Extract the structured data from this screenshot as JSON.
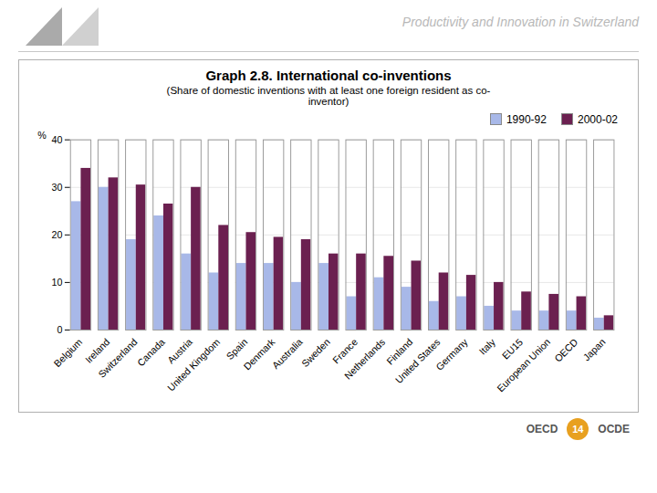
{
  "chart_data": {
    "type": "bar",
    "title": "Graph 2.8. International co-inventions",
    "subtitle": "(Share of domestic inventions with at least one foreign resident as co-\ninventor)",
    "annotations": [
      "Productivity and Innovation in Switzerland",
      "OECD",
      "14",
      "OCDE"
    ],
    "ylabel": "%",
    "categories": [
      "Belgium",
      "Ireland",
      "Switzerland",
      "Canada",
      "Austria",
      "United Kingdom",
      "Spain",
      "Denmark",
      "Australia",
      "Sweden",
      "France",
      "Netherlands",
      "Finland",
      "United States",
      "Germany",
      "Italy",
      "EU15",
      "European Union",
      "OECD",
      "Japan"
    ],
    "series": [
      {
        "name": "1990-92",
        "color": "#a8b8e8",
        "values": [
          27,
          30,
          19,
          24,
          16,
          12,
          14,
          14,
          10,
          14,
          7,
          11,
          9,
          6,
          7,
          5,
          4,
          4,
          4,
          2.5
        ]
      },
      {
        "name": "2000-02",
        "color": "#6b2050",
        "values": [
          34,
          32,
          30.5,
          26.5,
          30,
          22,
          20.5,
          19.5,
          19,
          16,
          16,
          15.5,
          14.5,
          12,
          11.5,
          10,
          8,
          7.5,
          7,
          3
        ]
      }
    ],
    "ylim": [
      0,
      40
    ],
    "yticks": [
      0,
      10,
      20,
      30,
      40
    ],
    "grid": true,
    "legend": "upper right"
  }
}
